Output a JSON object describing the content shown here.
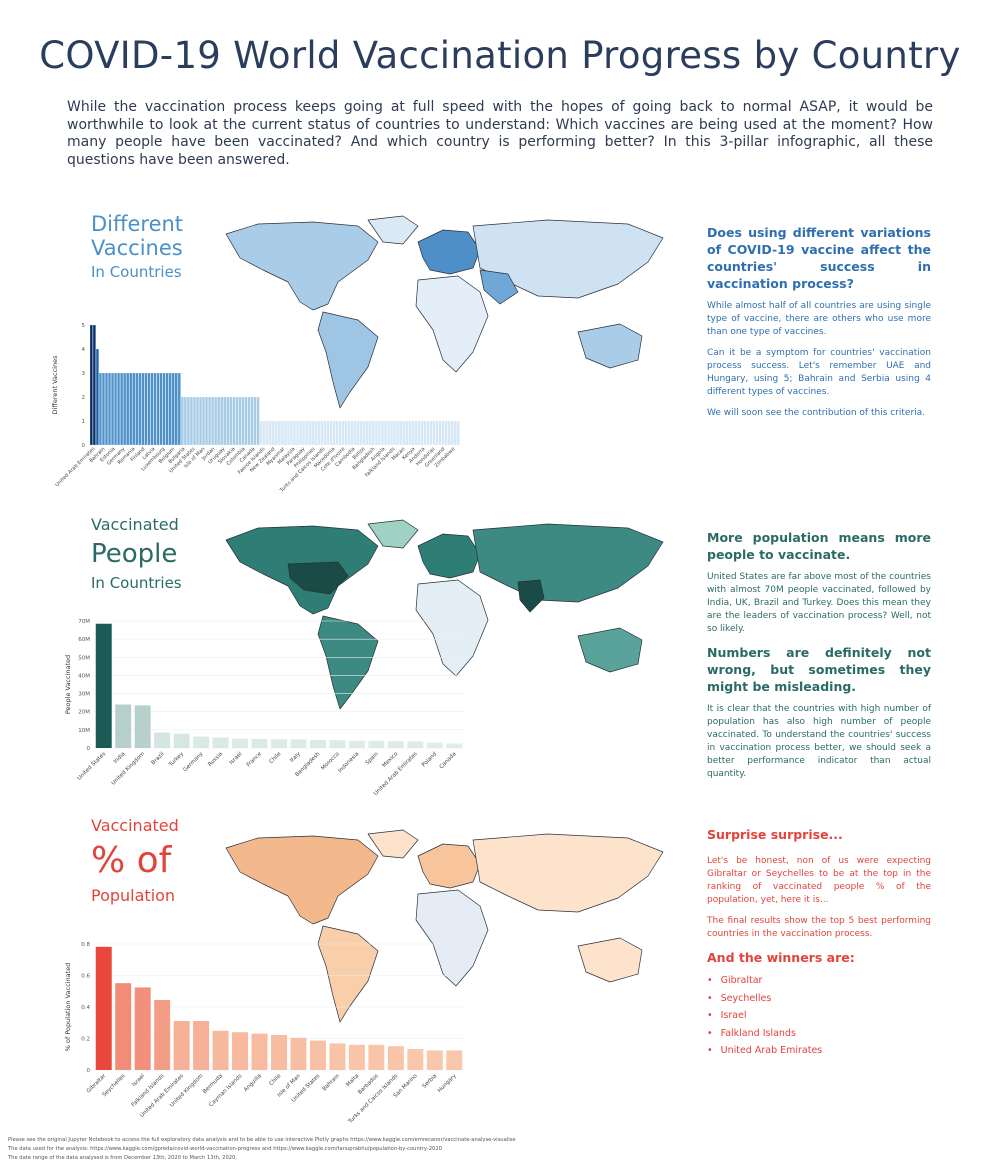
{
  "title": "COVID-19 World Vaccination Progress by Country",
  "intro": "While the vaccination process keeps going at full speed with the hopes of going back to normal ASAP, it would be worthwhile to look at the current status of countries to understand: Which vaccines are being used at the moment? How many people have been vaccinated? And which country is performing better? In this 3-pillar infographic, all these questions have been answered.",
  "colors": {
    "title": "#2b3d5c",
    "blue": "#2f6fb0",
    "teal": "#2a6b66",
    "red": "#e4433a"
  },
  "section1": {
    "title_line1": "Different",
    "title_line2": "Vaccines",
    "title_line3": "In Countries",
    "question": "Does using different variations of COVID-19 vaccine affect the countries' success in vaccination process?",
    "para1": "While almost half of all countries are using single type of vaccine, there are others who use more than one type of vaccines.",
    "para2": "Can it be a symptom for countries' vaccination process success. Let's remember UAE and Hungary, using 5; Bahrain and Serbia using 4 different types of vaccines.",
    "para3": "We will soon see the contribution of this criteria."
  },
  "section2": {
    "title_line1": "Vaccinated",
    "title_line2": "People",
    "title_line3": "In Countries",
    "heading1": "More population means more people to vaccinate.",
    "para1": "United States are far above most of the countries with almost 70M people vaccinated, followed by India, UK, Brazil and Turkey. Does this mean they are the leaders of vaccination process? Well, not so likely.",
    "heading2": "Numbers are definitely not wrong, but sometimes they might be misleading.",
    "para2": "It is clear that the countries with high number of population has also high number of people vaccinated. To understand the countries' success in vaccination process better, we should seek a better performance indicator than actual quantity."
  },
  "section3": {
    "title_line1": "Vaccinated",
    "title_line2": "% of",
    "title_line3": "Population",
    "heading1": "Surprise surprise...",
    "para1": "Let's be honest, non of us were expecting Gibraltar or Seychelles to be at the top in the ranking of vaccinated people % of the population, yet, here it is...",
    "para2": "The final results show the top 5 best performing countries in the vaccination process.",
    "heading2": "And the winners are:",
    "winners": [
      "Gibraltar",
      "Seychelles",
      "Israel",
      "Falkland Islands",
      "United Arab Emirates"
    ]
  },
  "footer": {
    "line1": "Please see the original Jupyter Notebook to access the full exploratory data analysis and to be able to use interactive Plotly graphs https://www.kaggle.com/emrecanor/vaccinate-analyse-visualise",
    "line2": "The data used for the analysis: https://www.kaggle.com/gpreda/covid-world-vaccination-progress and https://www.kaggle.com/tanuprabhu/population-by-country-2020",
    "line3": "The date range of the data analysed is from December 13th, 2020 to March 13th, 2020."
  },
  "chart_data": [
    {
      "type": "bar",
      "ylabel": "Different Vaccines",
      "ylim": [
        0,
        5
      ],
      "yticks": [
        "0",
        "1",
        "2",
        "3",
        "4",
        "5"
      ],
      "color_scale": "blue",
      "values": [
        5,
        5,
        4,
        3,
        3,
        3,
        3,
        3,
        3,
        3,
        3,
        3,
        3,
        3,
        3,
        3,
        3,
        3,
        3,
        3,
        3,
        3,
        3,
        3,
        3,
        3,
        3,
        3,
        3,
        3,
        2,
        2,
        2,
        2,
        2,
        2,
        2,
        2,
        2,
        2,
        2,
        2,
        2,
        2,
        2,
        2,
        2,
        2,
        2,
        2,
        2,
        2,
        2,
        2,
        2,
        2,
        1,
        1,
        1,
        1,
        1,
        1,
        1,
        1,
        1,
        1,
        1,
        1,
        1,
        1,
        1,
        1,
        1,
        1,
        1,
        1,
        1,
        1,
        1,
        1,
        1,
        1,
        1,
        1,
        1,
        1,
        1,
        1,
        1,
        1,
        1,
        1,
        1,
        1,
        1,
        1,
        1,
        1,
        1,
        1,
        1,
        1,
        1,
        1,
        1,
        1,
        1,
        1,
        1,
        1,
        1,
        1,
        1,
        1,
        1,
        1,
        1,
        1,
        1,
        1,
        1,
        1
      ],
      "labeled_categories": [
        "United Arab Emirates",
        "Bahrain",
        "Estonia",
        "Germany",
        "Romania",
        "Finland",
        "Latvia",
        "Luxembourg",
        "Belgium",
        "Bulgaria",
        "United States",
        "Isle of Man",
        "Jordan",
        "Uruguay",
        "Slovakia",
        "Colombia",
        "Canada",
        "Faeroe Islands",
        "New Zealand",
        "Myanmar",
        "Malaysia",
        "Paraguay",
        "Philippines",
        "Turks and Caicos Islands",
        "Macedonia",
        "Cote d'Ivoire",
        "Cambodia",
        "Belize",
        "Bangladesh",
        "Angola",
        "Falkland Islands",
        "Macao",
        "Kenya",
        "Andorra",
        "Honduras",
        "Greenland",
        "Zimbabwe"
      ]
    },
    {
      "type": "bar",
      "ylabel": "People Vaccinated",
      "ylim": [
        0,
        70000000
      ],
      "yticks": [
        "0",
        "10M",
        "20M",
        "30M",
        "40M",
        "50M",
        "60M",
        "70M"
      ],
      "categories": [
        "United States",
        "India",
        "United Kingdom",
        "Brazil",
        "Turkey",
        "Germany",
        "Russia",
        "Israel",
        "France",
        "Chile",
        "Italy",
        "Bangladesh",
        "Morocco",
        "Indonesia",
        "Spain",
        "Mexico",
        "United Arab Emirates",
        "Poland",
        "Canada"
      ],
      "values": [
        68500000,
        24000000,
        23500000,
        8500000,
        7900000,
        6300000,
        5800000,
        5100000,
        5000000,
        4800000,
        4700000,
        4400000,
        4300000,
        4000000,
        3900000,
        3800000,
        3700000,
        3000000,
        2500000
      ]
    },
    {
      "type": "bar",
      "ylabel": "% of Population Vaccinated",
      "ylim": [
        0,
        0.9
      ],
      "yticks": [
        "0",
        "0.2",
        "0.4",
        "0.6",
        "0.8"
      ],
      "categories": [
        "Gibraltar",
        "Seychelles",
        "Israel",
        "Falkland Islands",
        "United Arab Emirates",
        "United Kingdom",
        "Bermuda",
        "Cayman Islands",
        "Anguilla",
        "Chile",
        "Isle of Man",
        "United States",
        "Bahrain",
        "Malta",
        "Barbados",
        "Turks and Caicos Islands",
        "San Marino",
        "Serbia",
        "Hungary"
      ],
      "values": [
        0.88,
        0.62,
        0.59,
        0.5,
        0.35,
        0.35,
        0.28,
        0.27,
        0.26,
        0.25,
        0.23,
        0.21,
        0.19,
        0.18,
        0.18,
        0.17,
        0.15,
        0.14,
        0.14
      ]
    }
  ]
}
